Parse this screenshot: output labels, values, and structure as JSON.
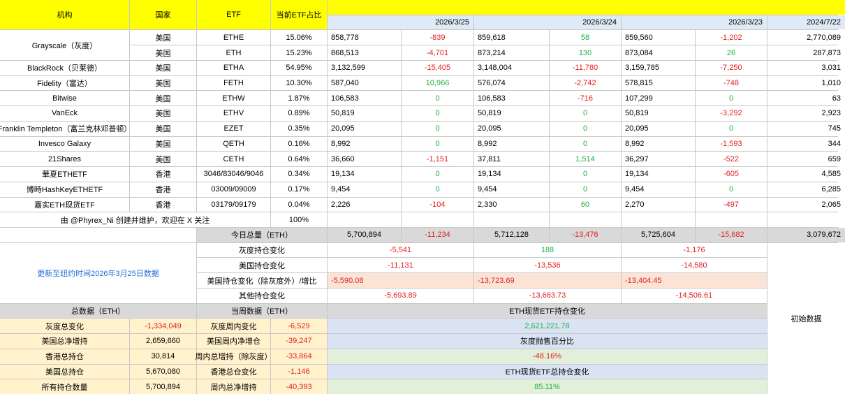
{
  "header": {
    "org": "机构",
    "country": "国家",
    "etf": "ETF",
    "share": "当前ETF占比"
  },
  "dates": [
    "2026/3/25",
    "2026/3/24",
    "2026/3/23",
    "2024/7/22"
  ],
  "rows": [
    {
      "country": "美国",
      "etf": "ETHE",
      "share": "15.06%",
      "v1": "858,778",
      "c1": "-839",
      "v2": "859,618",
      "c2": "58",
      "v3": "859,560",
      "c3": "-1,202",
      "v4": "2,770,089"
    },
    {
      "country": "美国",
      "etf": "ETH",
      "share": "15.23%",
      "v1": "868,513",
      "c1": "-4,701",
      "v2": "873,214",
      "c2": "130",
      "v3": "873,084",
      "c3": "26",
      "v4": "287,873"
    },
    {
      "org": "BlackRock（贝莱德）",
      "country": "美国",
      "etf": "ETHA",
      "share": "54.95%",
      "v1": "3,132,599",
      "c1": "-15,405",
      "v2": "3,148,004",
      "c2": "-11,780",
      "v3": "3,159,785",
      "c3": "-7,250",
      "v4": "3,031"
    },
    {
      "org": "Fidelity（富达）",
      "country": "美国",
      "etf": "FETH",
      "share": "10.30%",
      "v1": "587,040",
      "c1": "10,966",
      "v2": "576,074",
      "c2": "-2,742",
      "v3": "578,815",
      "c3": "-748",
      "v4": "1,010"
    },
    {
      "org": "Bitwise",
      "country": "美国",
      "etf": "ETHW",
      "share": "1.87%",
      "v1": "106,583",
      "c1": "0",
      "v2": "106,583",
      "c2": "-716",
      "v3": "107,299",
      "c3": "0",
      "v4": "63"
    },
    {
      "org": "VanEck",
      "country": "美国",
      "etf": "ETHV",
      "share": "0.89%",
      "v1": "50,819",
      "c1": "0",
      "v2": "50,819",
      "c2": "0",
      "v3": "50,819",
      "c3": "-3,292",
      "v4": "2,923"
    },
    {
      "org": "Franklin Templeton（富兰克林邓普顿）",
      "country": "美国",
      "etf": "EZET",
      "share": "0.35%",
      "v1": "20,095",
      "c1": "0",
      "v2": "20,095",
      "c2": "0",
      "v3": "20,095",
      "c3": "0",
      "v4": "745"
    },
    {
      "org": "Invesco Galaxy",
      "country": "美国",
      "etf": "QETH",
      "share": "0.16%",
      "v1": "8,992",
      "c1": "0",
      "v2": "8,992",
      "c2": "0",
      "v3": "8,992",
      "c3": "-1,593",
      "v4": "344"
    },
    {
      "org": "21Shares",
      "country": "美国",
      "etf": "CETH",
      "share": "0.64%",
      "v1": "36,660",
      "c1": "-1,151",
      "v2": "37,811",
      "c2": "1,514",
      "v3": "36,297",
      "c3": "-522",
      "v4": "659"
    },
    {
      "org": "華夏ETHETF",
      "country": "香港",
      "etf": "3046/83046/9046",
      "share": "0.34%",
      "v1": "19,134",
      "c1": "0",
      "v2": "19,134",
      "c2": "0",
      "v3": "19,134",
      "c3": "-605",
      "v4": "4,585"
    },
    {
      "org": "博時HashKeyETHETF",
      "country": "香港",
      "etf": "03009/09009",
      "share": "0.17%",
      "v1": "9,454",
      "c1": "0",
      "v2": "9,454",
      "c2": "0",
      "v3": "9,454",
      "c3": "0",
      "v4": "6,285"
    },
    {
      "org": "嘉实ETH现货ETF",
      "country": "香港",
      "etf": "03179/09179",
      "share": "0.04%",
      "v1": "2,226",
      "c1": "-104",
      "v2": "2,330",
      "c2": "60",
      "v3": "2,270",
      "c3": "-497",
      "v4": "2,065"
    }
  ],
  "grayscale_name": "Grayscale（灰度）",
  "credit": "由 @Phyrex_Ni 创建并维护，欢迎在 X 关注",
  "total_share": "100%",
  "today_total": {
    "label": "今日总量（ETH）",
    "v1": "5,700,894",
    "c1": "-11,234",
    "v2": "5,712,128",
    "c2": "-13,476",
    "v3": "5,725,604",
    "c3": "-15,682",
    "v4": "3,079,672"
  },
  "updated": "更新至纽约时间2026年3月25日数据",
  "changes": [
    {
      "label": "灰度持仓变化",
      "d1": "-5,541",
      "d2": "188",
      "d3": "-1,176"
    },
    {
      "label": "美国持仓变化",
      "d1": "-11,131",
      "d2": "-13,536",
      "d3": "-14,580"
    },
    {
      "label": "美国持仓变化（除灰度外）/增比",
      "d1": "-5,590.08",
      "d2": "-13,723.69",
      "d3": "-13,404.45"
    },
    {
      "label": "其他持仓变化",
      "d1": "-5,693.89",
      "d2": "-13,663.73",
      "d3": "-14,506.61"
    }
  ],
  "initial": "初始数据",
  "summary_head": {
    "total": "总数据（ETH）",
    "week": "当周数据（ETH）",
    "spot": "ETH现货ETF持仓变化"
  },
  "summary": [
    {
      "k1": "灰度总变化",
      "v1": "-1,334,049",
      "k2": "灰度周内变化",
      "v2": "-6,529",
      "m": "2,621,221.78"
    },
    {
      "k1": "美国总净增持",
      "v1": "2,659,660",
      "k2": "美国周内净增仓",
      "v2": "-39,247",
      "m": "灰度抛售百分比"
    },
    {
      "k1": "香港总持仓",
      "v1": "30,814",
      "k2": "周内总增持（除灰度）",
      "v2": "-33,864",
      "m": "-48.16%"
    },
    {
      "k1": "美国总持仓",
      "v1": "5,670,080",
      "k2": "香港总仓变化",
      "v2": "-1,146",
      "m": "ETH现货ETF总持仓变化"
    },
    {
      "k1": "所有持仓数量",
      "v1": "5,700,894",
      "k2": "周内总净增持",
      "v2": "-40,393",
      "m": "85.11%"
    }
  ]
}
